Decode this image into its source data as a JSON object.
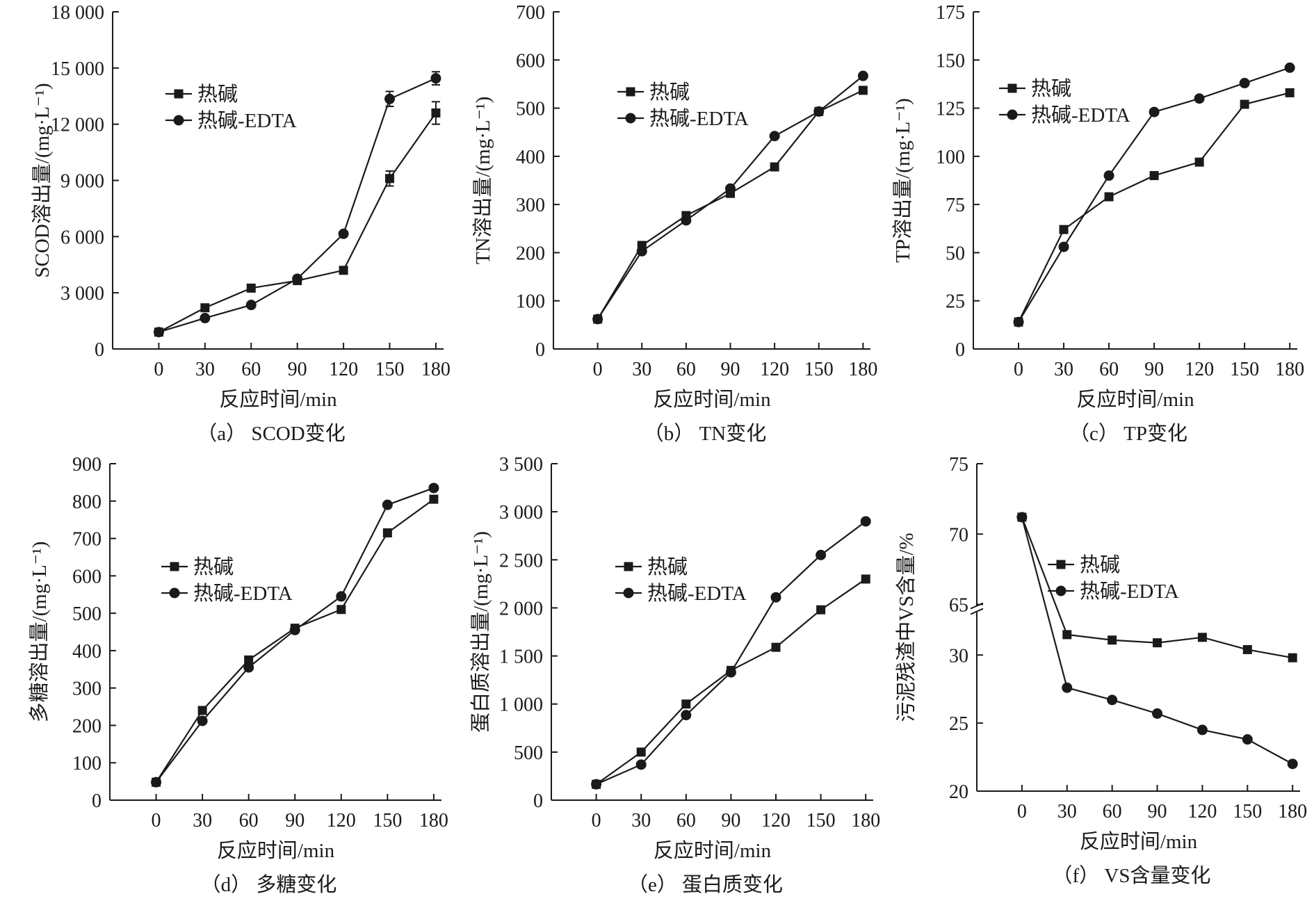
{
  "figure": {
    "background": "#ffffff",
    "ink": "#1a1a1a"
  },
  "chart_data": [
    {
      "id": "a",
      "type": "line",
      "caption": "（a） SCOD变化",
      "xlabel": "反应时间/min",
      "ylabel": "SCOD溶出量/(mg·L⁻¹)",
      "x": [
        0,
        30,
        60,
        90,
        120,
        150,
        180
      ],
      "x_ticks": [
        0,
        30,
        60,
        90,
        120,
        150,
        180
      ],
      "x_tick_labels": [
        "0",
        "30",
        "60",
        "90",
        "120",
        "150",
        "180"
      ],
      "xlim": [
        -30,
        185
      ],
      "ylim": [
        0,
        18000
      ],
      "y_ticks": [
        0,
        3000,
        6000,
        9000,
        12000,
        15000,
        18000
      ],
      "y_tick_labels": [
        "0",
        "3 000",
        "6 000",
        "9 000",
        "12 000",
        "15 000",
        "18 000"
      ],
      "legend_position": "upper-left",
      "series": [
        {
          "name": "热碱",
          "marker": "square",
          "values": [
            900,
            2200,
            3250,
            3650,
            4200,
            9100,
            12600
          ],
          "errors": [
            0,
            0,
            0,
            0,
            0,
            400,
            600
          ]
        },
        {
          "name": "热碱-EDTA",
          "marker": "circle",
          "values": [
            900,
            1650,
            2350,
            3750,
            6150,
            13350,
            14450
          ],
          "errors": [
            0,
            0,
            0,
            0,
            0,
            400,
            350
          ]
        }
      ]
    },
    {
      "id": "b",
      "type": "line",
      "caption": "（b） TN变化",
      "xlabel": "反应时间/min",
      "ylabel": "TN溶出量/(mg·L⁻¹)",
      "x": [
        0,
        30,
        60,
        90,
        120,
        150,
        180
      ],
      "x_ticks": [
        0,
        30,
        60,
        90,
        120,
        150,
        180
      ],
      "x_tick_labels": [
        "0",
        "30",
        "60",
        "90",
        "120",
        "150",
        "180"
      ],
      "xlim": [
        -30,
        185
      ],
      "ylim": [
        0,
        700
      ],
      "y_ticks": [
        0,
        100,
        200,
        300,
        400,
        500,
        600,
        700
      ],
      "y_tick_labels": [
        "0",
        "100",
        "200",
        "300",
        "400",
        "500",
        "600",
        "700"
      ],
      "legend_position": "upper-left",
      "series": [
        {
          "name": "热碱",
          "marker": "square",
          "values": [
            62,
            215,
            277,
            323,
            378,
            493,
            537
          ]
        },
        {
          "name": "热碱-EDTA",
          "marker": "circle",
          "values": [
            62,
            203,
            267,
            333,
            442,
            493,
            567
          ]
        }
      ]
    },
    {
      "id": "c",
      "type": "line",
      "caption": "（c） TP变化",
      "xlabel": "反应时间/min",
      "ylabel": "TP溶出量/(mg·L⁻¹)",
      "x": [
        0,
        30,
        60,
        90,
        120,
        150,
        180
      ],
      "x_ticks": [
        0,
        30,
        60,
        90,
        120,
        150,
        180
      ],
      "x_tick_labels": [
        "0",
        "30",
        "60",
        "90",
        "120",
        "150",
        "180"
      ],
      "xlim": [
        -30,
        185
      ],
      "ylim": [
        0,
        175
      ],
      "y_ticks": [
        0,
        25,
        50,
        75,
        100,
        125,
        150,
        175
      ],
      "y_tick_labels": [
        "0",
        "25",
        "50",
        "75",
        "100",
        "125",
        "150",
        "175"
      ],
      "legend_position": "upper-left",
      "series": [
        {
          "name": "热碱",
          "marker": "square",
          "values": [
            14,
            62,
            79,
            90,
            97,
            127,
            133
          ]
        },
        {
          "name": "热碱-EDTA",
          "marker": "circle",
          "values": [
            14,
            53,
            90,
            123,
            130,
            138,
            146
          ]
        }
      ]
    },
    {
      "id": "d",
      "type": "line",
      "caption": "（d） 多糖变化",
      "xlabel": "反应时间/min",
      "ylabel": "多糖溶出量/(mg·L⁻¹)",
      "x": [
        0,
        30,
        60,
        90,
        120,
        150,
        180
      ],
      "x_ticks": [
        0,
        30,
        60,
        90,
        120,
        150,
        180
      ],
      "x_tick_labels": [
        "0",
        "30",
        "60",
        "90",
        "120",
        "150",
        "180"
      ],
      "xlim": [
        -30,
        185
      ],
      "ylim": [
        0,
        900
      ],
      "y_ticks": [
        0,
        100,
        200,
        300,
        400,
        500,
        600,
        700,
        800,
        900
      ],
      "y_tick_labels": [
        "0",
        "100",
        "200",
        "300",
        "400",
        "500",
        "600",
        "700",
        "800",
        "900"
      ],
      "legend_position": "center-left",
      "series": [
        {
          "name": "热碱",
          "marker": "square",
          "values": [
            48,
            240,
            375,
            460,
            510,
            715,
            805
          ]
        },
        {
          "name": "热碱-EDTA",
          "marker": "circle",
          "values": [
            48,
            212,
            355,
            455,
            545,
            790,
            835
          ]
        }
      ]
    },
    {
      "id": "e",
      "type": "line",
      "caption": "（e） 蛋白质变化",
      "xlabel": "反应时间/min",
      "ylabel": "蛋白质溶出量/(mg·L⁻¹)",
      "x": [
        0,
        30,
        60,
        90,
        120,
        150,
        180
      ],
      "x_ticks": [
        0,
        30,
        60,
        90,
        120,
        150,
        180
      ],
      "x_tick_labels": [
        "0",
        "30",
        "60",
        "90",
        "120",
        "150",
        "180"
      ],
      "xlim": [
        -30,
        185
      ],
      "ylim": [
        0,
        3500
      ],
      "y_ticks": [
        0,
        500,
        1000,
        1500,
        2000,
        2500,
        3000,
        3500
      ],
      "y_tick_labels": [
        "0",
        "500",
        "1 000",
        "1 500",
        "2 000",
        "2 500",
        "3 000",
        "3 500"
      ],
      "legend_position": "center-left",
      "series": [
        {
          "name": "热碱",
          "marker": "square",
          "values": [
            165,
            500,
            1000,
            1350,
            1590,
            1980,
            2300
          ]
        },
        {
          "name": "热碱-EDTA",
          "marker": "circle",
          "values": [
            165,
            370,
            885,
            1330,
            2110,
            2550,
            2900
          ]
        }
      ]
    },
    {
      "id": "f",
      "type": "line",
      "caption": "（f） VS含量变化",
      "xlabel": "反应时间/min",
      "ylabel": "污泥残渣中VS含量/%",
      "x": [
        0,
        30,
        60,
        90,
        120,
        150,
        180
      ],
      "x_ticks": [
        0,
        30,
        60,
        90,
        120,
        150,
        180
      ],
      "x_tick_labels": [
        "0",
        "30",
        "60",
        "90",
        "120",
        "150",
        "180"
      ],
      "xlim": [
        -30,
        185
      ],
      "axis_break": true,
      "ylim_lower": [
        20,
        33
      ],
      "ylim_upper": [
        65,
        75
      ],
      "y_ticks_lower": [
        20,
        25,
        30
      ],
      "y_tick_labels_lower": [
        "20",
        "25",
        "30"
      ],
      "y_ticks_upper": [
        65,
        70,
        75
      ],
      "y_tick_labels_upper": [
        "65",
        "70",
        "75"
      ],
      "legend_position": "center",
      "series": [
        {
          "name": "热碱",
          "marker": "square",
          "values": [
            71.2,
            31.5,
            31.1,
            30.9,
            31.3,
            30.4,
            29.8
          ]
        },
        {
          "name": "热碱-EDTA",
          "marker": "circle",
          "values": [
            71.2,
            27.6,
            26.7,
            25.7,
            24.5,
            23.8,
            22.0
          ]
        }
      ]
    }
  ]
}
